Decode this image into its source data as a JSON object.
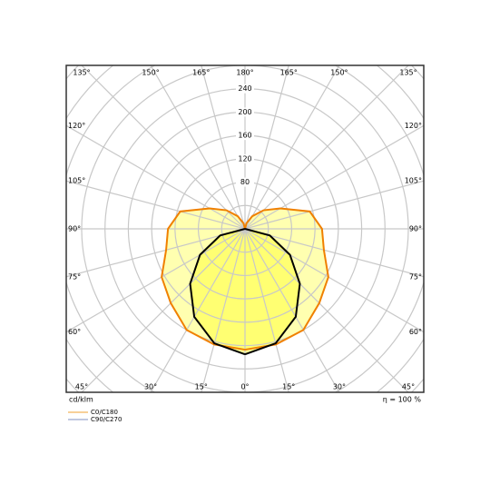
{
  "chart_data": {
    "type": "polar",
    "unit_label": "cd/klm",
    "efficiency_label": "η = 100 %",
    "rlim": [
      0,
      280
    ],
    "rticks": [
      80,
      120,
      160,
      200,
      240
    ],
    "rgrid": [
      40,
      280,
      320,
      360,
      400
    ],
    "angles": [
      0,
      15,
      30,
      45,
      60,
      75,
      90,
      105,
      120,
      135,
      150,
      165,
      180
    ],
    "angle_ticks": [
      {
        "value": -180,
        "label": "180°"
      },
      {
        "value": -165,
        "label": "165°"
      },
      {
        "value": -150,
        "label": "150°"
      },
      {
        "value": -135,
        "label": "135°"
      },
      {
        "value": -120,
        "label": "120°"
      },
      {
        "value": -105,
        "label": "105°"
      },
      {
        "value": -90,
        "label": "90°"
      },
      {
        "value": -75,
        "label": "75°"
      },
      {
        "value": -60,
        "label": "60°"
      },
      {
        "value": -45,
        "label": "45°"
      },
      {
        "value": -30,
        "label": "30°"
      },
      {
        "value": -15,
        "label": "15°"
      },
      {
        "value": 0,
        "label": "0°"
      },
      {
        "value": 15,
        "label": "15°"
      },
      {
        "value": 30,
        "label": "30°"
      },
      {
        "value": 45,
        "label": "45°"
      },
      {
        "value": 60,
        "label": "60°"
      },
      {
        "value": 75,
        "label": "75°"
      },
      {
        "value": 90,
        "label": "90°"
      },
      {
        "value": 105,
        "label": "105°"
      },
      {
        "value": 120,
        "label": "120°"
      },
      {
        "value": 135,
        "label": "135°"
      },
      {
        "value": 150,
        "label": "150°"
      },
      {
        "value": 165,
        "label": "165°"
      }
    ],
    "series": [
      {
        "name": "C0/C180",
        "color": "#f08000",
        "legend_color": "#f0a030",
        "fill": "#ffff70",
        "values": [
          207,
          205,
          200,
          180,
          165,
          140,
          132,
          115,
          70,
          45,
          25,
          10,
          0
        ]
      },
      {
        "name": "C90/C270",
        "color": "#000000",
        "legend_color": "#8090c0",
        "fill": "#ffff40",
        "values": [
          215,
          203,
          174,
          133,
          89,
          44,
          0,
          0,
          0,
          0,
          0,
          0,
          0
        ]
      }
    ]
  }
}
